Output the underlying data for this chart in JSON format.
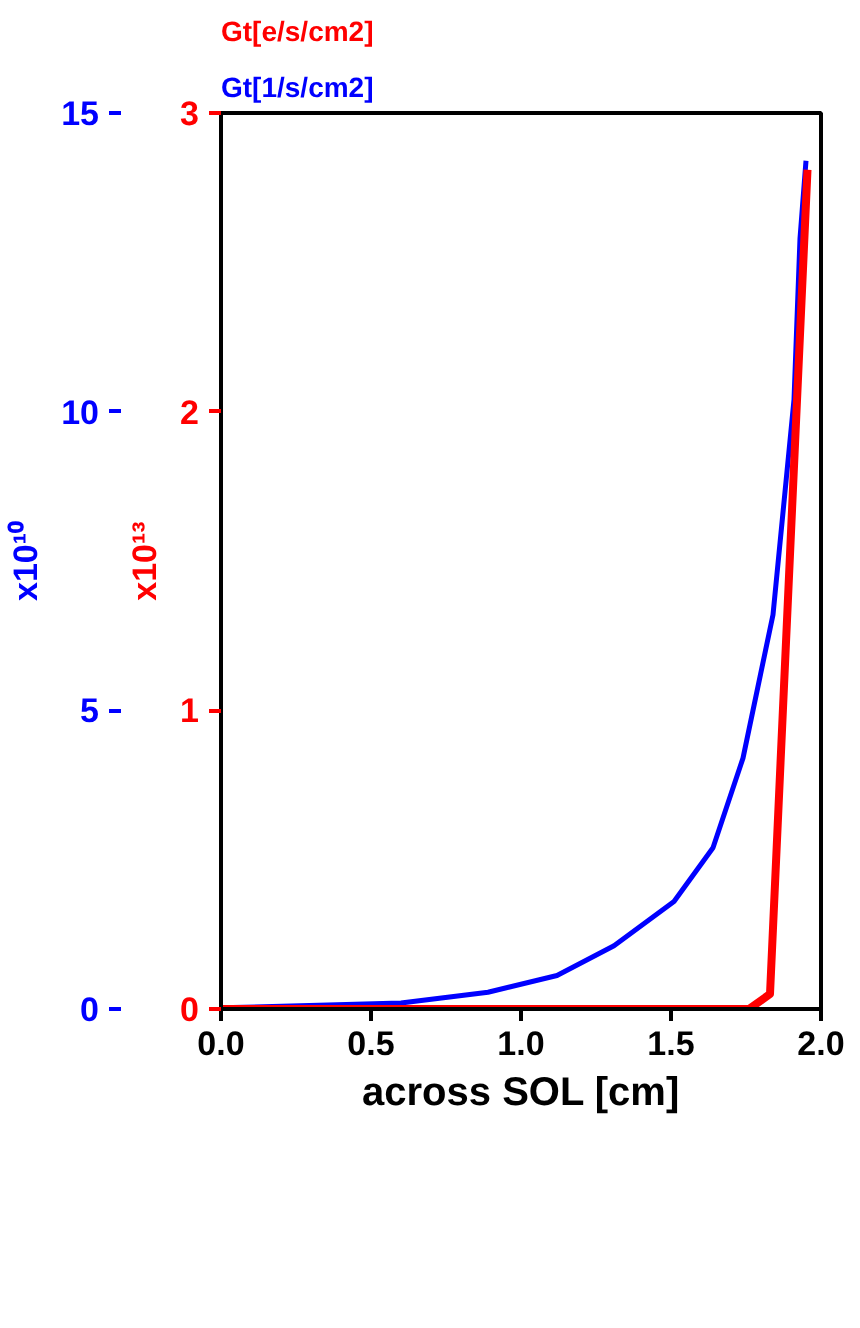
{
  "chart_data": {
    "type": "line",
    "xlabel": "across SOL [cm]",
    "ylabel": "x10¹³",
    "y2label": "x10¹⁰",
    "xlim": [
      0,
      2.0
    ],
    "xticks": [
      {
        "value": 0,
        "label": "0.0"
      },
      {
        "value": 0.5,
        "label": "0.5"
      },
      {
        "value": 1.0,
        "label": "1.0"
      },
      {
        "value": 1.5,
        "label": "1.5"
      },
      {
        "value": 2.0,
        "label": "2.0"
      }
    ],
    "ylim": [
      0,
      3
    ],
    "yticks": [
      0,
      1,
      2,
      3
    ],
    "y2lim": [
      0,
      15
    ],
    "y2ticks": [
      0,
      5,
      10,
      15
    ],
    "legend": "top",
    "series": [
      {
        "name": "Gt[1/s/cm2]",
        "color": "#0000ff",
        "axis": "y2",
        "x": [
          0,
          0.6,
          0.89,
          1.12,
          1.31,
          1.51,
          1.64,
          1.74,
          1.84,
          1.91,
          1.93,
          1.95
        ],
        "values": [
          0.02,
          0.1,
          0.28,
          0.56,
          1.06,
          1.8,
          2.7,
          4.2,
          6.6,
          10.2,
          12.9,
          14.2
        ]
      },
      {
        "name": "Gt[e/s/cm2]",
        "color": "#ff0000",
        "x": [
          0,
          1.76,
          1.83,
          1.955
        ],
        "values": [
          0,
          0,
          0.05,
          2.81
        ]
      }
    ]
  }
}
